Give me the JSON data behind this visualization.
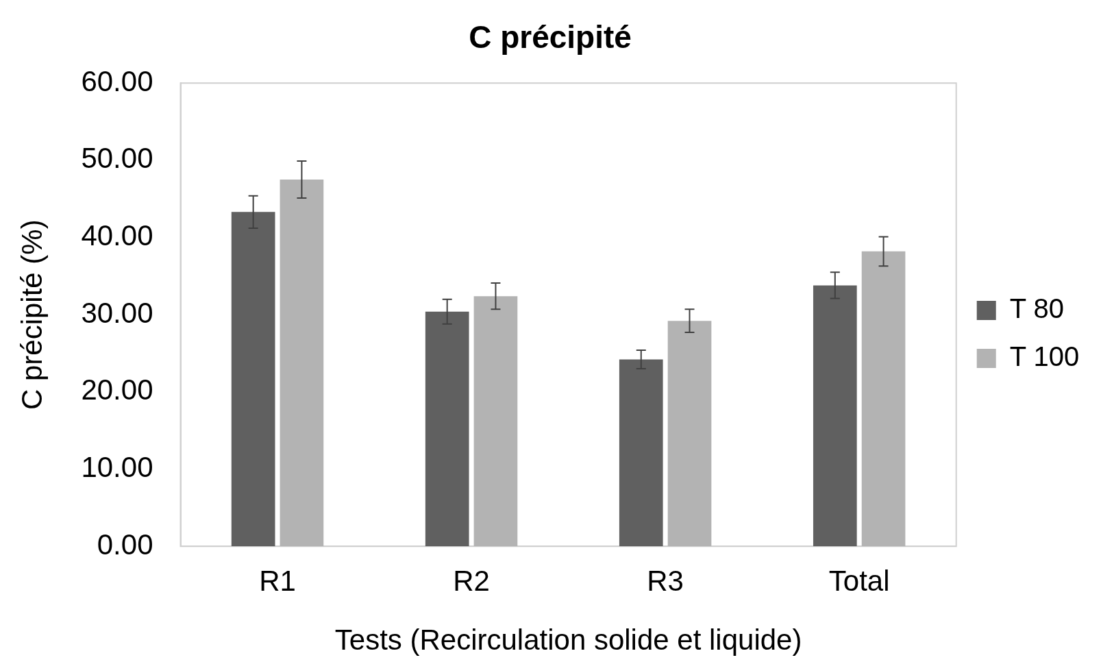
{
  "chart_data": {
    "type": "bar",
    "title": "C précipité",
    "xlabel": "Tests (Recirculation solide et liquide)",
    "ylabel": "C précipité (%)",
    "categories": [
      "R1",
      "R2",
      "R3",
      "Total"
    ],
    "series": [
      {
        "name": "T 80",
        "color": "#606060",
        "values": [
          43.3,
          30.4,
          24.2,
          33.8
        ],
        "errors": [
          2.1,
          1.6,
          1.2,
          1.7
        ]
      },
      {
        "name": "T 100",
        "color": "#b3b3b3",
        "values": [
          47.5,
          32.4,
          29.2,
          38.2
        ],
        "errors": [
          2.4,
          1.7,
          1.5,
          1.9
        ]
      }
    ],
    "ylim": [
      0,
      60
    ],
    "yticks": [
      {
        "value": 0,
        "label": "0.00"
      },
      {
        "value": 10,
        "label": "10.00"
      },
      {
        "value": 20,
        "label": "20.00"
      },
      {
        "value": 30,
        "label": "30.00"
      },
      {
        "value": 40,
        "label": "40.00"
      },
      {
        "value": 50,
        "label": "50.00"
      },
      {
        "value": 60,
        "label": "60.00"
      }
    ],
    "grid": false,
    "legend": "right"
  }
}
